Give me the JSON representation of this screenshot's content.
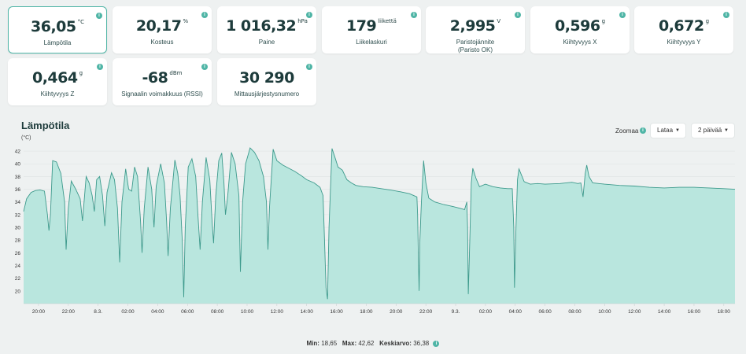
{
  "cards": [
    {
      "value": "36,05",
      "unit": "°C",
      "label": "Lämpötila",
      "label2": "",
      "selected": true
    },
    {
      "value": "20,17",
      "unit": "%",
      "label": "Kosteus",
      "label2": ""
    },
    {
      "value": "1 016,32",
      "unit": "hPa",
      "label": "Paine",
      "label2": ""
    },
    {
      "value": "179",
      "unit": "liikettä",
      "label": "Liikelaskuri",
      "label2": ""
    },
    {
      "value": "2,995",
      "unit": "V",
      "label": "Paristojännite",
      "label2": "(Paristo OK)"
    },
    {
      "value": "0,596",
      "unit": "g",
      "label": "Kiihtyvyys X",
      "label2": ""
    },
    {
      "value": "0,672",
      "unit": "g",
      "label": "Kiihtyvyys Y",
      "label2": ""
    },
    {
      "value": "0,464",
      "unit": "g",
      "label": "Kiihtyvyys Z",
      "label2": ""
    },
    {
      "value": "-68",
      "unit": "dBm",
      "label": "Signaalin voimakkuus (RSSI)",
      "label2": ""
    },
    {
      "value": "30 290",
      "unit": "",
      "label": "Mittausjärjestysnumero",
      "label2": ""
    }
  ],
  "chart": {
    "title": "Lämpötila",
    "unit": "(°C)",
    "zoom_label": "Zoomaa",
    "download_label": "Lataa",
    "range_label": "2 päivää",
    "info_glyph": "i",
    "caret_glyph": "▼"
  },
  "footer": {
    "min_label": "Min:",
    "min_value": "18,65",
    "max_label": "Max:",
    "max_value": "42,62",
    "avg_label": "Keskiarvo:",
    "avg_value": "36,38"
  },
  "colors": {
    "accent": "#4fb5a6",
    "fill": "#b9e6de",
    "line": "#3d9a8c"
  },
  "chart_data": {
    "type": "area",
    "title": "Lämpötila",
    "ylabel": "(°C)",
    "ylim": [
      18,
      43
    ],
    "yticks": [
      20,
      22,
      24,
      26,
      28,
      30,
      32,
      34,
      36,
      38,
      40,
      42
    ],
    "xlim": [
      19.0,
      66.75
    ],
    "xticks": [
      {
        "t": 20,
        "label": "20:00"
      },
      {
        "t": 22,
        "label": "22:00"
      },
      {
        "t": 24,
        "label": "8.3."
      },
      {
        "t": 26,
        "label": "02:00"
      },
      {
        "t": 28,
        "label": "04:00"
      },
      {
        "t": 30,
        "label": "06:00"
      },
      {
        "t": 32,
        "label": "08:00"
      },
      {
        "t": 34,
        "label": "10:00"
      },
      {
        "t": 36,
        "label": "12:00"
      },
      {
        "t": 38,
        "label": "14:00"
      },
      {
        "t": 40,
        "label": "16:00"
      },
      {
        "t": 42,
        "label": "18:00"
      },
      {
        "t": 44,
        "label": "20:00"
      },
      {
        "t": 46,
        "label": "22:00"
      },
      {
        "t": 48,
        "label": "9.3."
      },
      {
        "t": 50,
        "label": "02:00"
      },
      {
        "t": 52,
        "label": "04:00"
      },
      {
        "t": 54,
        "label": "06:00"
      },
      {
        "t": 56,
        "label": "08:00"
      },
      {
        "t": 58,
        "label": "10:00"
      },
      {
        "t": 60,
        "label": "12:00"
      },
      {
        "t": 62,
        "label": "14:00"
      },
      {
        "t": 64,
        "label": "16:00"
      },
      {
        "t": 66,
        "label": "18:00"
      }
    ],
    "series": [
      {
        "name": "Lämpötila (°C)",
        "points": [
          [
            19.0,
            32.5
          ],
          [
            19.2,
            34.5
          ],
          [
            19.5,
            35.5
          ],
          [
            19.8,
            35.8
          ],
          [
            20.1,
            35.9
          ],
          [
            20.4,
            35.7
          ],
          [
            20.6,
            32.0
          ],
          [
            20.7,
            29.5
          ],
          [
            20.8,
            32.0
          ],
          [
            20.95,
            40.5
          ],
          [
            21.2,
            40.3
          ],
          [
            21.5,
            38.5
          ],
          [
            21.75,
            34.0
          ],
          [
            21.85,
            26.5
          ],
          [
            22.0,
            33.0
          ],
          [
            22.2,
            37.3
          ],
          [
            22.5,
            36.0
          ],
          [
            22.8,
            34.5
          ],
          [
            22.95,
            31.0
          ],
          [
            23.2,
            38.0
          ],
          [
            23.4,
            37.0
          ],
          [
            23.6,
            35.0
          ],
          [
            23.75,
            32.5
          ],
          [
            23.9,
            37.5
          ],
          [
            24.1,
            38.0
          ],
          [
            24.3,
            35.0
          ],
          [
            24.45,
            30.2
          ],
          [
            24.6,
            35.5
          ],
          [
            24.9,
            38.6
          ],
          [
            25.1,
            37.5
          ],
          [
            25.3,
            33.0
          ],
          [
            25.45,
            24.5
          ],
          [
            25.6,
            34.0
          ],
          [
            25.85,
            39.2
          ],
          [
            26.05,
            36.0
          ],
          [
            26.25,
            35.7
          ],
          [
            26.45,
            39.5
          ],
          [
            26.65,
            38.0
          ],
          [
            26.85,
            31.0
          ],
          [
            26.95,
            26.0
          ],
          [
            27.1,
            33.0
          ],
          [
            27.35,
            39.5
          ],
          [
            27.6,
            36.0
          ],
          [
            27.75,
            30.0
          ],
          [
            27.9,
            36.5
          ],
          [
            28.2,
            40.0
          ],
          [
            28.45,
            37.0
          ],
          [
            28.6,
            31.0
          ],
          [
            28.7,
            25.5
          ],
          [
            28.85,
            33.0
          ],
          [
            29.15,
            40.6
          ],
          [
            29.35,
            38.5
          ],
          [
            29.5,
            35.0
          ],
          [
            29.65,
            28.0
          ],
          [
            29.75,
            19.0
          ],
          [
            29.85,
            30.0
          ],
          [
            30.05,
            39.5
          ],
          [
            30.3,
            40.8
          ],
          [
            30.55,
            38.0
          ],
          [
            30.7,
            32.0
          ],
          [
            30.85,
            26.5
          ],
          [
            31.0,
            34.0
          ],
          [
            31.25,
            41.0
          ],
          [
            31.5,
            37.5
          ],
          [
            31.65,
            31.0
          ],
          [
            31.75,
            27.5
          ],
          [
            31.9,
            35.0
          ],
          [
            32.1,
            40.5
          ],
          [
            32.3,
            41.7
          ],
          [
            32.45,
            37.0
          ],
          [
            32.55,
            32.0
          ],
          [
            32.7,
            35.0
          ],
          [
            32.95,
            41.8
          ],
          [
            33.2,
            40.0
          ],
          [
            33.45,
            35.0
          ],
          [
            33.55,
            23.0
          ],
          [
            33.7,
            34.0
          ],
          [
            33.9,
            40.0
          ],
          [
            34.2,
            42.5
          ],
          [
            34.5,
            41.8
          ],
          [
            34.8,
            40.5
          ],
          [
            35.1,
            38.0
          ],
          [
            35.3,
            34.0
          ],
          [
            35.4,
            26.5
          ],
          [
            35.5,
            33.0
          ],
          [
            35.75,
            42.3
          ],
          [
            36.0,
            40.5
          ],
          [
            36.4,
            39.8
          ],
          [
            36.8,
            39.3
          ],
          [
            37.2,
            38.8
          ],
          [
            37.6,
            38.2
          ],
          [
            38.0,
            37.5
          ],
          [
            38.5,
            37.0
          ],
          [
            38.9,
            36.3
          ],
          [
            39.1,
            35.0
          ],
          [
            39.2,
            28.0
          ],
          [
            39.3,
            20.5
          ],
          [
            39.4,
            18.7
          ],
          [
            39.5,
            30.0
          ],
          [
            39.7,
            42.4
          ],
          [
            39.9,
            41.0
          ],
          [
            40.1,
            39.5
          ],
          [
            40.4,
            39.0
          ],
          [
            40.7,
            37.5
          ],
          [
            41.0,
            37.0
          ],
          [
            41.3,
            36.6
          ],
          [
            41.8,
            36.4
          ],
          [
            42.4,
            36.3
          ],
          [
            43.0,
            36.1
          ],
          [
            43.6,
            35.9
          ],
          [
            44.3,
            35.6
          ],
          [
            44.9,
            35.3
          ],
          [
            45.4,
            34.8
          ],
          [
            45.45,
            32.0
          ],
          [
            45.5,
            25.0
          ],
          [
            45.55,
            20.0
          ],
          [
            45.6,
            28.0
          ],
          [
            45.7,
            34.0
          ],
          [
            45.85,
            40.5
          ],
          [
            46.0,
            37.0
          ],
          [
            46.2,
            34.6
          ],
          [
            46.6,
            34.0
          ],
          [
            47.2,
            33.6
          ],
          [
            47.8,
            33.3
          ],
          [
            48.3,
            33.0
          ],
          [
            48.6,
            32.8
          ],
          [
            48.75,
            34.0
          ],
          [
            48.8,
            30.0
          ],
          [
            48.85,
            19.5
          ],
          [
            48.95,
            28.0
          ],
          [
            49.05,
            37.0
          ],
          [
            49.15,
            39.3
          ],
          [
            49.35,
            37.8
          ],
          [
            49.6,
            36.4
          ],
          [
            50.0,
            36.8
          ],
          [
            50.5,
            36.4
          ],
          [
            51.0,
            36.2
          ],
          [
            51.5,
            36.1
          ],
          [
            51.8,
            36.1
          ],
          [
            51.9,
            30.0
          ],
          [
            51.95,
            20.5
          ],
          [
            52.05,
            30.0
          ],
          [
            52.15,
            37.5
          ],
          [
            52.25,
            39.2
          ],
          [
            52.6,
            37.2
          ],
          [
            53.0,
            36.8
          ],
          [
            53.5,
            36.9
          ],
          [
            54.0,
            36.8
          ],
          [
            55.0,
            36.9
          ],
          [
            55.8,
            37.1
          ],
          [
            56.2,
            36.9
          ],
          [
            56.4,
            37.0
          ],
          [
            56.55,
            34.8
          ],
          [
            56.7,
            38.5
          ],
          [
            56.8,
            39.8
          ],
          [
            56.95,
            38.0
          ],
          [
            57.2,
            37.0
          ],
          [
            57.6,
            36.9
          ],
          [
            58.0,
            36.8
          ],
          [
            59.0,
            36.6
          ],
          [
            60.0,
            36.5
          ],
          [
            61.0,
            36.3
          ],
          [
            62.0,
            36.2
          ],
          [
            63.0,
            36.3
          ],
          [
            64.0,
            36.3
          ],
          [
            65.0,
            36.2
          ],
          [
            66.0,
            36.1
          ],
          [
            66.75,
            36.0
          ]
        ]
      }
    ],
    "stats": {
      "min": 18.65,
      "max": 42.62,
      "avg": 36.38
    }
  }
}
